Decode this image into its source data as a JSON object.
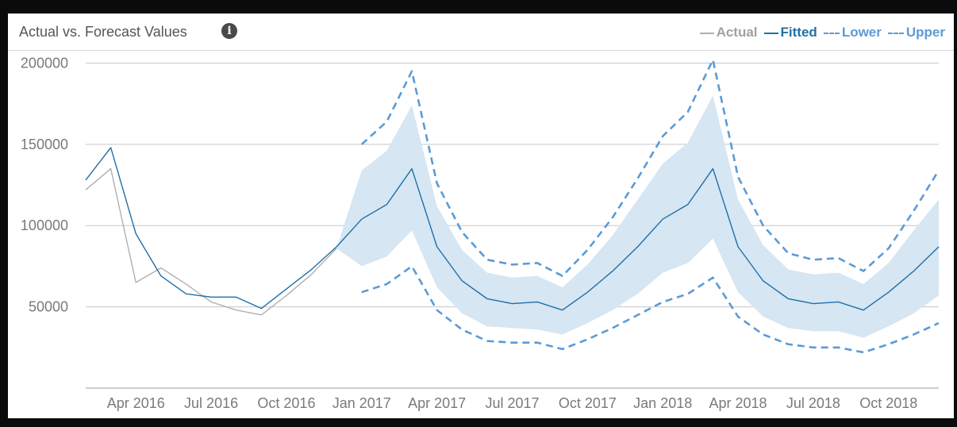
{
  "header": {
    "title": "Actual vs. Forecast Values"
  },
  "colors": {
    "actual": "#b0b0b0",
    "fitted": "#1f6fa8",
    "bounds": "#5b9bd5",
    "band": "#d6e6f2",
    "grid": "#c8c8c8"
  },
  "legend": [
    {
      "key": "actual",
      "label": "Actual"
    },
    {
      "key": "fitted",
      "label": "Fitted"
    },
    {
      "key": "lower",
      "label": "Lower"
    },
    {
      "key": "upper",
      "label": "Upper"
    }
  ],
  "chart_data": {
    "type": "line",
    "x": [
      "2016-02",
      "2016-03",
      "2016-04",
      "2016-05",
      "2016-06",
      "2016-07",
      "2016-08",
      "2016-09",
      "2016-10",
      "2016-11",
      "2016-12",
      "2017-01",
      "2017-02",
      "2017-03",
      "2017-04",
      "2017-05",
      "2017-06",
      "2017-07",
      "2017-08",
      "2017-09",
      "2017-10",
      "2017-11",
      "2017-12",
      "2018-01",
      "2018-02",
      "2018-03",
      "2018-04",
      "2018-05",
      "2018-06",
      "2018-07",
      "2018-08",
      "2018-09",
      "2018-10",
      "2018-11",
      "2018-12"
    ],
    "x_tick_labels": [
      "Apr 2016",
      "Jul 2016",
      "Oct 2016",
      "Jan 2017",
      "Apr 2017",
      "Jul 2017",
      "Oct 2017",
      "Jan 2018",
      "Apr 2018",
      "Jul 2018",
      "Oct 2018"
    ],
    "x_tick_values": [
      "2016-04",
      "2016-07",
      "2016-10",
      "2017-01",
      "2017-04",
      "2017-07",
      "2017-10",
      "2018-01",
      "2018-04",
      "2018-07",
      "2018-10"
    ],
    "y_ticks": [
      50000,
      100000,
      150000,
      200000
    ],
    "ylim": [
      0,
      210000
    ],
    "grid": true,
    "legend_position": "top-right",
    "series": [
      {
        "name": "Actual",
        "key": "actual",
        "values": [
          122000,
          135000,
          65000,
          74000,
          64000,
          53000,
          48000,
          45000,
          57000,
          70000,
          86000,
          null,
          null,
          null,
          null,
          null,
          null,
          null,
          null,
          null,
          null,
          null,
          null,
          null,
          null,
          null,
          null,
          null,
          null,
          null,
          null,
          null,
          null,
          null,
          null
        ]
      },
      {
        "name": "Fitted",
        "key": "fitted",
        "values": [
          128000,
          148000,
          95000,
          69000,
          58000,
          56000,
          56000,
          49000,
          61000,
          73000,
          87000,
          104000,
          113000,
          135000,
          87000,
          66000,
          55000,
          52000,
          53000,
          48000,
          59000,
          72000,
          87000,
          104000,
          113000,
          135000,
          87000,
          66000,
          55000,
          52000,
          53000,
          48000,
          59000,
          72000,
          87000
        ]
      },
      {
        "name": "Lower",
        "key": "lower",
        "values": [
          null,
          null,
          null,
          null,
          null,
          null,
          null,
          null,
          null,
          null,
          null,
          59000,
          64000,
          75000,
          48000,
          36000,
          29000,
          28000,
          28000,
          24000,
          30000,
          37000,
          45000,
          53000,
          58000,
          68000,
          44000,
          33000,
          27000,
          25000,
          25000,
          22000,
          27000,
          33000,
          40000
        ]
      },
      {
        "name": "Upper",
        "key": "upper",
        "values": [
          null,
          null,
          null,
          null,
          null,
          null,
          null,
          null,
          null,
          null,
          null,
          150000,
          164000,
          195000,
          126000,
          96000,
          79000,
          76000,
          77000,
          69000,
          85000,
          105000,
          129000,
          155000,
          170000,
          202000,
          130000,
          100000,
          83000,
          79000,
          80000,
          72000,
          86000,
          109000,
          134000
        ]
      }
    ],
    "band": {
      "lower": [
        null,
        null,
        null,
        null,
        null,
        null,
        null,
        null,
        null,
        null,
        86000,
        75000,
        81000,
        97000,
        62000,
        46000,
        38000,
        37000,
        36000,
        33000,
        40000,
        48000,
        58000,
        71000,
        77000,
        92000,
        59000,
        44000,
        37000,
        35000,
        35000,
        31000,
        38000,
        46000,
        57000
      ],
      "upper": [
        null,
        null,
        null,
        null,
        null,
        null,
        null,
        null,
        null,
        null,
        86000,
        134000,
        146000,
        174000,
        112000,
        85000,
        71000,
        68000,
        69000,
        62000,
        76000,
        94000,
        116000,
        138000,
        151000,
        180000,
        116000,
        88000,
        73000,
        70000,
        71000,
        64000,
        77000,
        97000,
        116000
      ]
    }
  }
}
